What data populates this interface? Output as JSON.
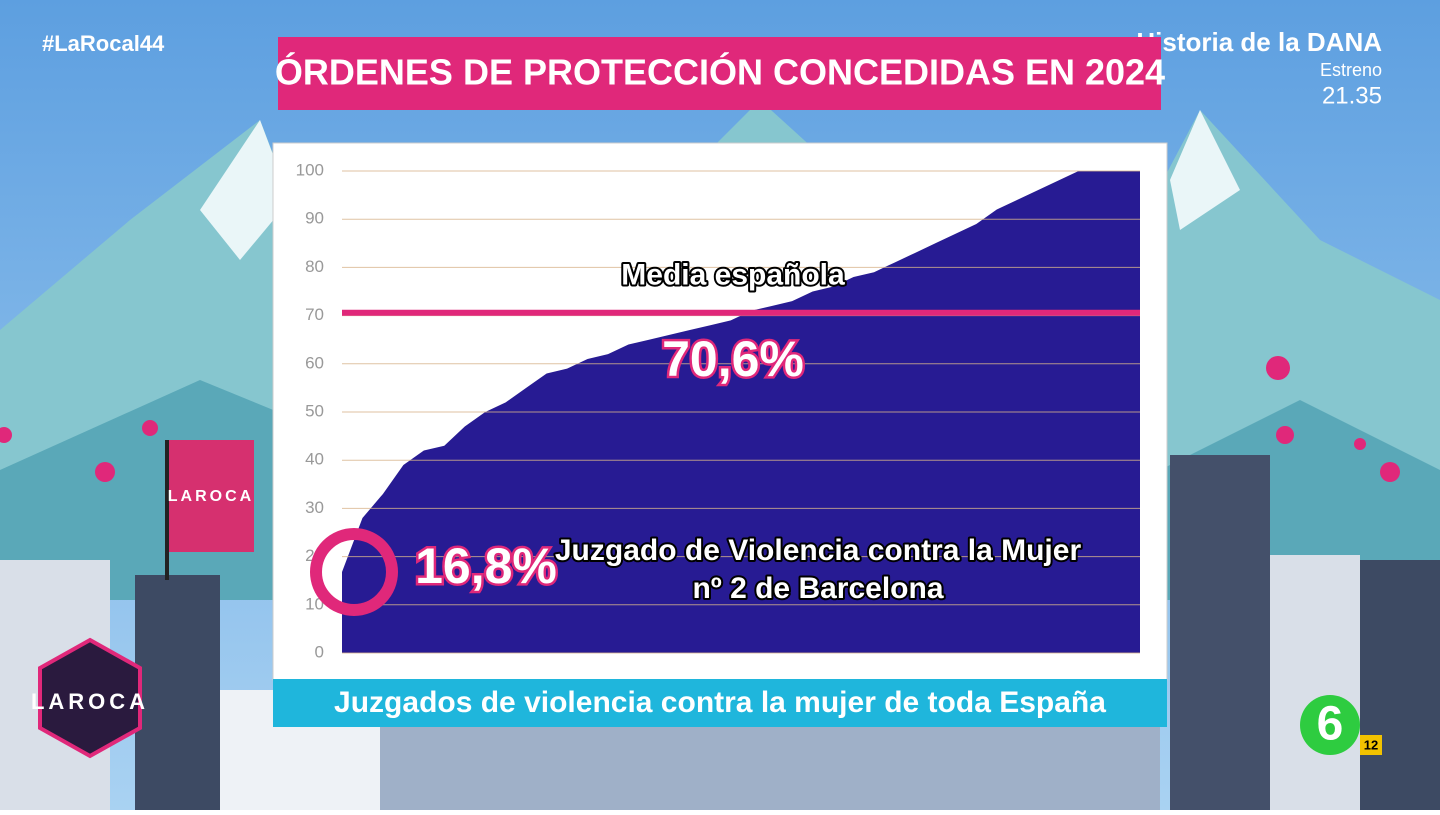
{
  "hashtag": "#LaRocal44",
  "promo": {
    "title": "Historia de la DANA",
    "label": "Estreno",
    "time": "21.35"
  },
  "branding": {
    "show": "LAROCA",
    "channel": "6",
    "rating": "12"
  },
  "chart_data": {
    "type": "area",
    "title": "ÓRDENES DE PROTECCIÓN CONCEDIDAS EN 2024",
    "x_label": "Juzgados de violencia contra la mujer de toda España",
    "color": "#271b93",
    "values": [
      16.8,
      28,
      33,
      39,
      42,
      43,
      47,
      50,
      52,
      55,
      58,
      59,
      61,
      62,
      64,
      65,
      66,
      67,
      68,
      69,
      71,
      72,
      73,
      75,
      76,
      78,
      79,
      81,
      83,
      85,
      87,
      89,
      92,
      94,
      96,
      98,
      100,
      100,
      100,
      100
    ],
    "ylim": [
      0,
      100
    ],
    "yticks": [
      0,
      10,
      20,
      30,
      40,
      50,
      60,
      70,
      80,
      90,
      100
    ],
    "grid": true,
    "reference_line": {
      "label": "Media española",
      "value": 70.6,
      "value_label": "70,6%",
      "color": "#e0287a"
    },
    "highlight": {
      "value": 16.8,
      "value_label": "16,8%",
      "label_lines": [
        "Juzgado de Violencia contra la Mujer",
        "nº 2 de Barcelona"
      ],
      "color": "#e0287a"
    }
  }
}
